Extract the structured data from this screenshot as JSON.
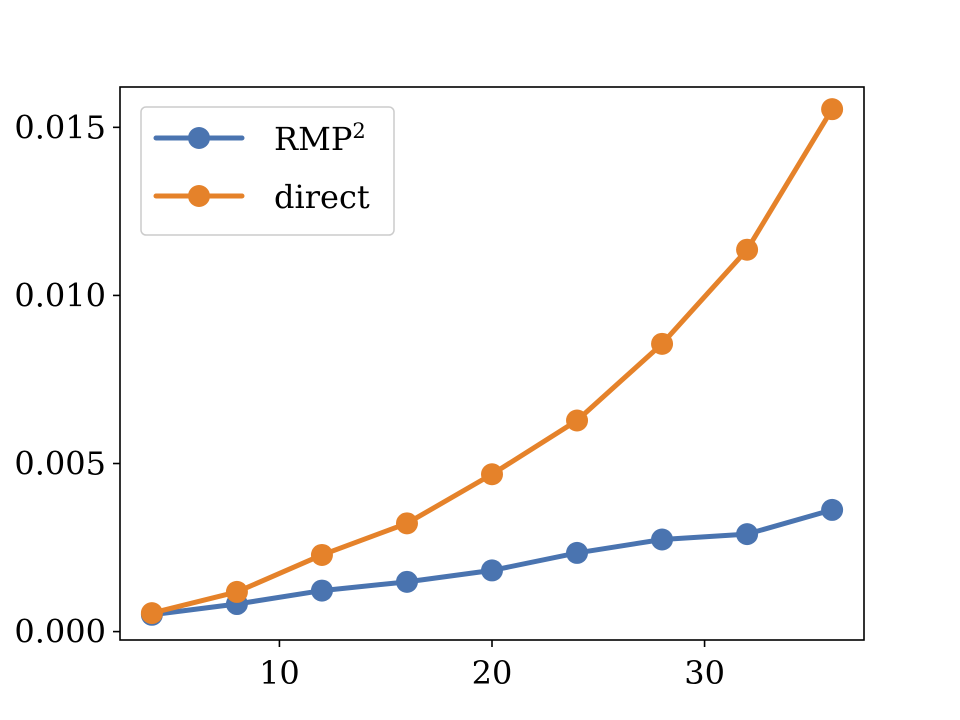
{
  "chart_data": {
    "type": "line",
    "x_ticks": [
      10,
      20,
      30
    ],
    "y_ticks": [
      0.0,
      0.005,
      0.01,
      0.015
    ],
    "y_tick_labels": [
      "0.000",
      "0.005",
      "0.010",
      "0.015"
    ],
    "x_tick_labels": [
      "10",
      "20",
      "30"
    ],
    "xlim": [
      2.5,
      37.5
    ],
    "ylim": [
      -0.00025,
      0.0162
    ],
    "grid": false,
    "legend_position": "top-left",
    "series": [
      {
        "name": "RMP",
        "name_sup": "2",
        "color": "#4a74b0",
        "x": [
          4,
          8,
          12,
          16,
          20,
          24,
          28,
          32,
          36
        ],
        "y": [
          0.0005,
          0.00082,
          0.00122,
          0.00148,
          0.00182,
          0.00234,
          0.00274,
          0.0029,
          0.00362
        ]
      },
      {
        "name": "direct",
        "color": "#e5822a",
        "x": [
          4,
          8,
          12,
          16,
          20,
          24,
          28,
          32,
          36
        ],
        "y": [
          0.00055,
          0.00118,
          0.00228,
          0.00322,
          0.00468,
          0.00628,
          0.00856,
          0.01136,
          0.01554
        ]
      }
    ]
  }
}
